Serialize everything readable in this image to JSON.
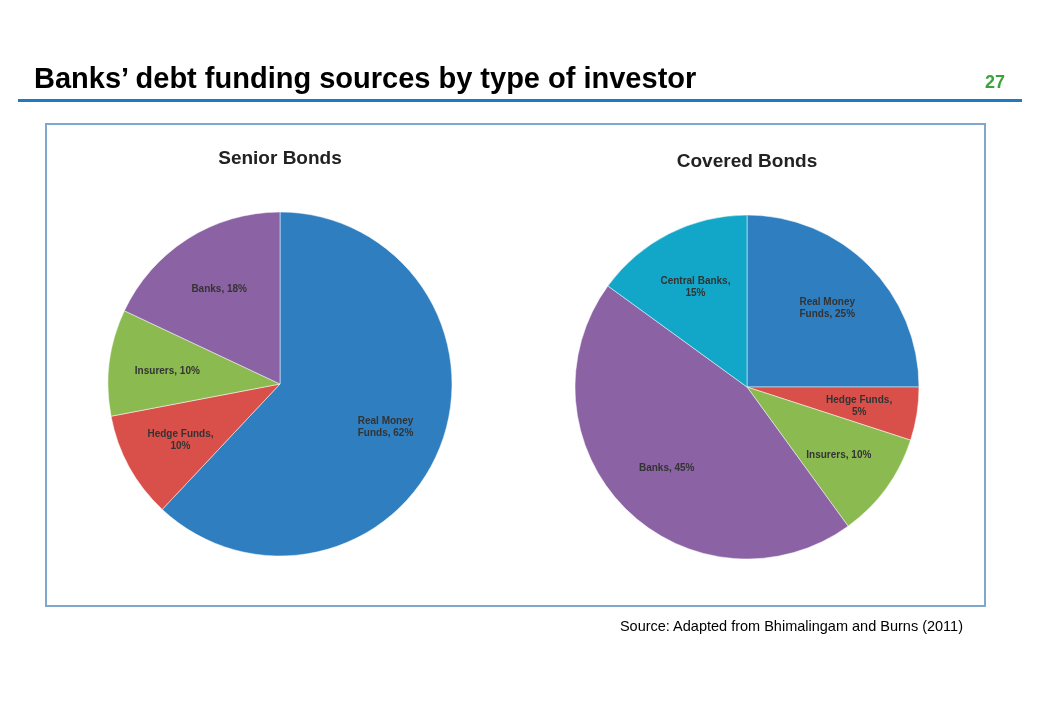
{
  "chart_data": [
    {
      "type": "other",
      "title": "Banks’ debt funding sources by type of investor",
      "annotations": [
        "27",
        "Source: Adapted from Bhimalingam and Burns (2011)"
      ]
    },
    {
      "type": "pie",
      "title": "Senior Bonds",
      "categories": [
        "Real Money Funds",
        "Hedge Funds",
        "Insurers",
        "Banks"
      ],
      "values": [
        62,
        10,
        10,
        18
      ],
      "value_labels": [
        ", 62%",
        ", 10%",
        ", 10%",
        ", 18%"
      ],
      "colors": [
        "#2f7ebf",
        "#d9504b",
        "#8bbb50",
        "#8b62a3"
      ]
    },
    {
      "type": "pie",
      "title": "Covered Bonds",
      "categories": [
        "Real Money Funds",
        "Hedge Funds",
        "Insurers",
        "Banks",
        "Central Banks"
      ],
      "values": [
        25,
        5,
        10,
        45,
        15
      ],
      "value_labels": [
        ", 25%",
        ", 5%",
        ", 10%",
        ", 45%",
        ", 15%"
      ],
      "colors": [
        "#2f7ebf",
        "#d9504b",
        "#8bbb50",
        "#8b62a3",
        "#12a6c8"
      ]
    }
  ]
}
